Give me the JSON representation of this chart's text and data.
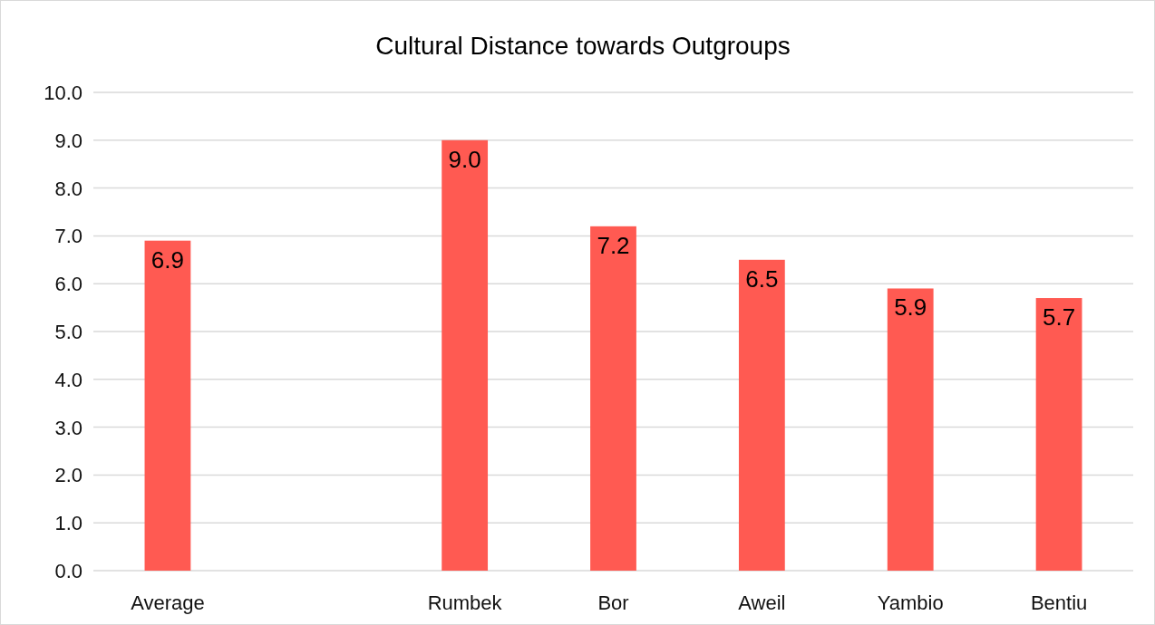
{
  "chart_data": {
    "type": "bar",
    "title": "Cultural Distance towards Outgroups",
    "categories": [
      "Average",
      null,
      "Rumbek",
      "Bor",
      "Aweil",
      "Yambio",
      "Bentiu"
    ],
    "values": [
      6.9,
      null,
      9.0,
      7.2,
      6.5,
      5.9,
      5.7
    ],
    "value_labels": [
      "6.9",
      null,
      "9.0",
      "7.2",
      "6.5",
      "5.9",
      "5.7"
    ],
    "color": "#ff5a52",
    "ylim": [
      0,
      10
    ],
    "yticks": [
      {
        "value": 0,
        "label": "0.0"
      },
      {
        "value": 1,
        "label": "1.0"
      },
      {
        "value": 2,
        "label": "2.0"
      },
      {
        "value": 3,
        "label": "3.0"
      },
      {
        "value": 4,
        "label": "4.0"
      },
      {
        "value": 5,
        "label": "5.0"
      },
      {
        "value": 6,
        "label": "6.0"
      },
      {
        "value": 7,
        "label": "7.0"
      },
      {
        "value": 8,
        "label": "8.0"
      },
      {
        "value": 9,
        "label": "9.0"
      },
      {
        "value": 10,
        "label": "10.0"
      }
    ],
    "grid": "y"
  }
}
